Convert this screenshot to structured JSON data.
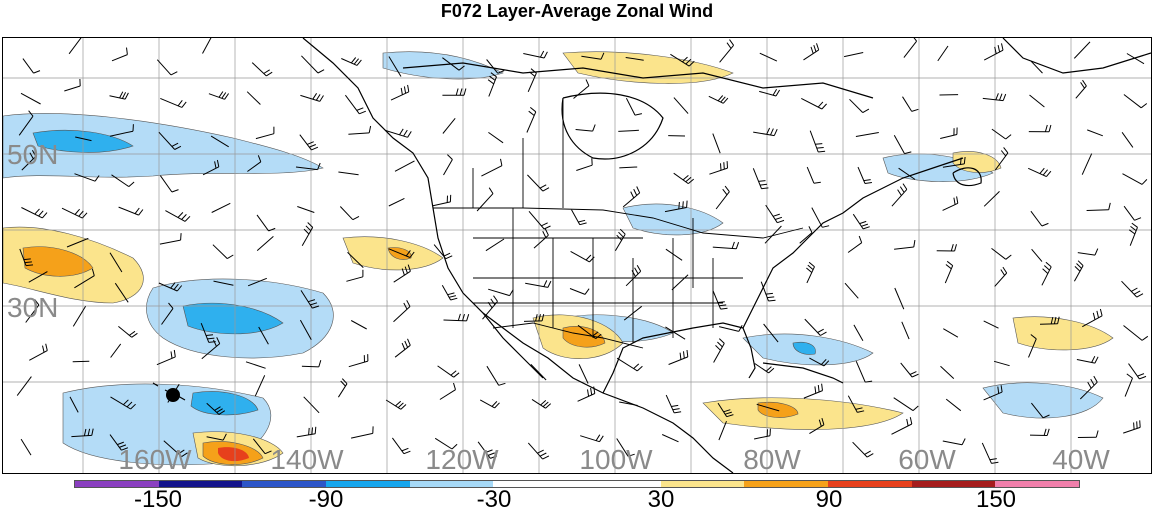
{
  "title": "F072 Layer-Average Zonal Wind",
  "map": {
    "lat_labels": [
      "50N",
      "30N"
    ],
    "lon_labels": [
      "160W",
      "140W",
      "120W",
      "100W",
      "80W",
      "60W",
      "40W"
    ]
  },
  "colorbar": {
    "colors": [
      "#8a3fc0",
      "#14148c",
      "#2c55c8",
      "#16a6ee",
      "#a6d9f7",
      "#ffffff",
      "#ffffff",
      "#fbe48c",
      "#f5a11a",
      "#e7401c",
      "#a51c1c",
      "#f07fab"
    ],
    "labels": [
      "-150",
      "-90",
      "-30",
      "30",
      "90",
      "150"
    ]
  },
  "legend_colors": {
    "negative_light": "#b4dcf7",
    "negative_mid": "#2fb0ee",
    "positive_light": "#fbe48c",
    "positive_mid": "#f5a11a",
    "positive_strong": "#e7401c"
  }
}
